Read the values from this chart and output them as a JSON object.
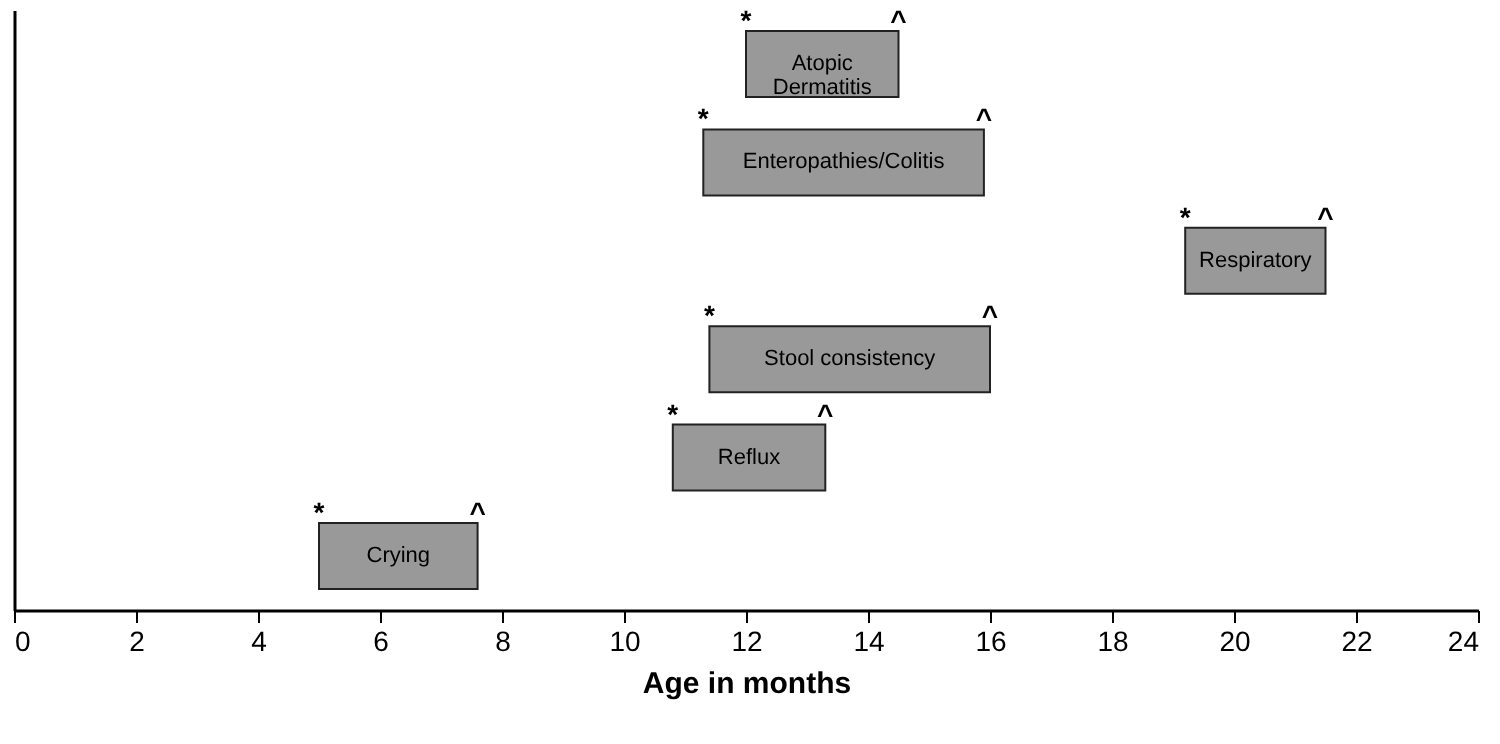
{
  "chart_data": {
    "type": "bar",
    "orientation": "horizontal",
    "xlabel": "Age in  months",
    "categories": [
      "Atopic Dermatitis",
      "Enteropathies/Colitis",
      "Respiratory",
      "Stool consistency",
      "Reflux",
      "Crying"
    ],
    "base": [
      12.0,
      11.3,
      19.2,
      11.4,
      10.8,
      5.0
    ],
    "values": [
      2.5,
      4.6,
      2.3,
      4.6,
      2.5,
      2.6
    ],
    "color": "#999999",
    "xlim": [
      0,
      24
    ],
    "xticks": [
      0,
      2,
      4,
      6,
      8,
      10,
      12,
      14,
      16,
      18,
      20,
      22,
      24
    ],
    "tick_labels": "x",
    "grid": false,
    "annotations": [
      {
        "text": "*",
        "x": 12.0,
        "y": "Atopic Dermatitis"
      },
      {
        "text": "^",
        "x": 14.5,
        "y": "Atopic Dermatitis"
      },
      {
        "text": "*",
        "x": 11.3,
        "y": "Enteropathies/Colitis"
      },
      {
        "text": "^",
        "x": 15.9,
        "y": "Enteropathies/Colitis"
      },
      {
        "text": "*",
        "x": 19.2,
        "y": "Respiratory"
      },
      {
        "text": "^",
        "x": 21.5,
        "y": "Respiratory"
      },
      {
        "text": "*",
        "x": 11.4,
        "y": "Stool consistency"
      },
      {
        "text": "^",
        "x": 16.0,
        "y": "Stool consistency"
      },
      {
        "text": "*",
        "x": 10.8,
        "y": "Reflux"
      },
      {
        "text": "^",
        "x": 13.3,
        "y": "Reflux"
      },
      {
        "text": "*",
        "x": 5.0,
        "y": "Crying"
      },
      {
        "text": "^",
        "x": 7.6,
        "y": "Crying"
      }
    ]
  }
}
